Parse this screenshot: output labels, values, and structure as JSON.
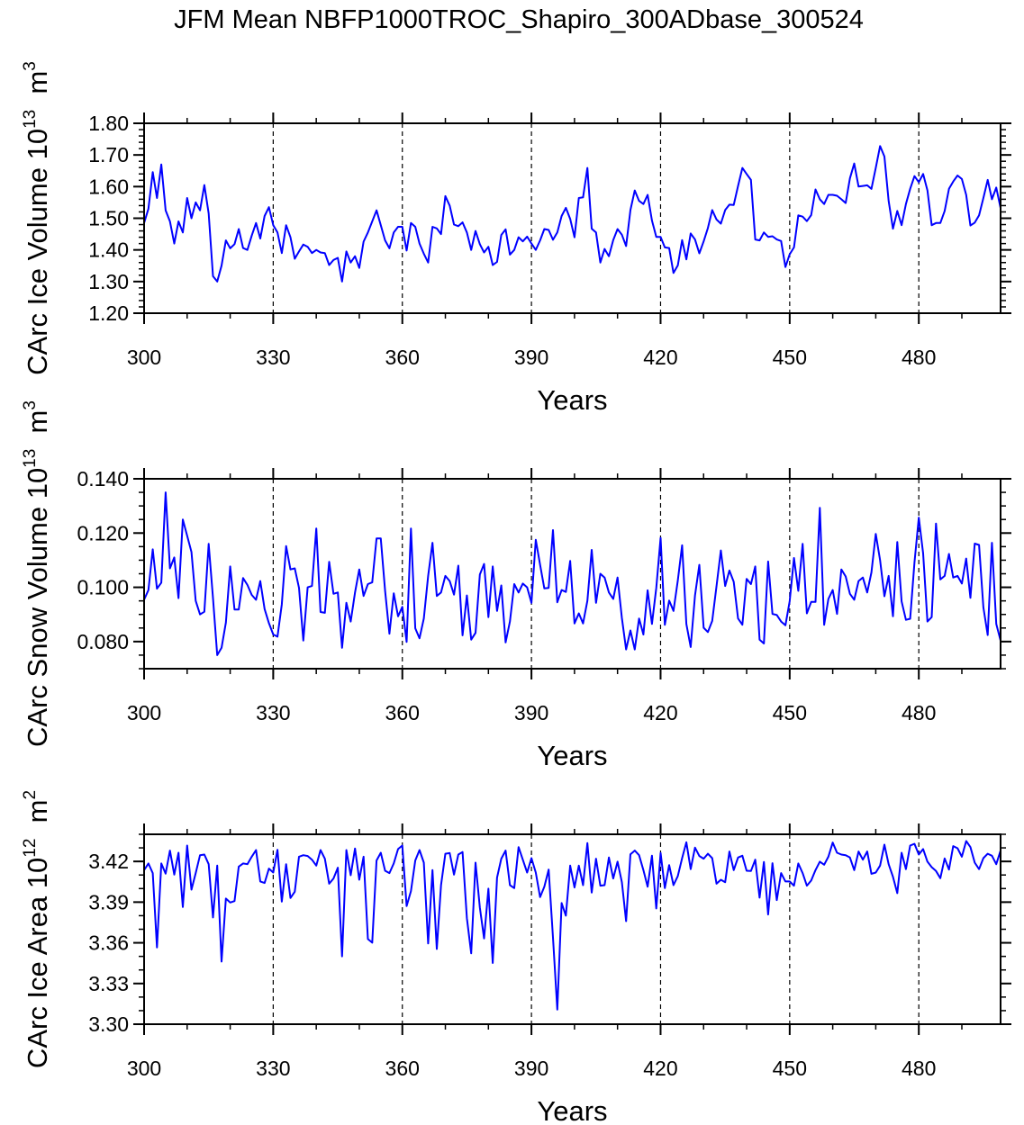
{
  "title": "JFM Mean NBFP1000TROC_Shapiro_300ADbase_300524",
  "chart_data": [
    {
      "type": "line",
      "xlabel": "Years",
      "ylabel": {
        "text": "CArc Ice Volume 10",
        "exp": "13",
        "unit": " m",
        "unit_exp": "3"
      },
      "xlim": [
        300,
        499
      ],
      "ylim": [
        1.2,
        1.8
      ],
      "x_ticks": [
        300,
        330,
        360,
        390,
        420,
        450,
        480
      ],
      "x_tick_labels": [
        "300",
        "330",
        "360",
        "390",
        "420",
        "450",
        "480"
      ],
      "x_minor_step": 10,
      "y_ticks": [
        1.2,
        1.3,
        1.4,
        1.5,
        1.6,
        1.7,
        1.8
      ],
      "y_tick_labels": [
        "1.20",
        "1.30",
        "1.40",
        "1.50",
        "1.60",
        "1.70",
        "1.80"
      ],
      "y_minor_step": 0.02,
      "vlines": [
        330,
        360,
        390,
        420,
        450,
        480
      ],
      "series_color": "#0000ff",
      "x_start": 300,
      "x_step": 1,
      "values": [
        1.485,
        1.53,
        1.646,
        1.564,
        1.67,
        1.525,
        1.49,
        1.42,
        1.49,
        1.455,
        1.564,
        1.5,
        1.55,
        1.525,
        1.605,
        1.515,
        1.317,
        1.3,
        1.35,
        1.43,
        1.405,
        1.418,
        1.466,
        1.406,
        1.4,
        1.445,
        1.485,
        1.436,
        1.507,
        1.535,
        1.478,
        1.455,
        1.39,
        1.478,
        1.44,
        1.372,
        1.395,
        1.417,
        1.41,
        1.39,
        1.4,
        1.392,
        1.39,
        1.352,
        1.368,
        1.375,
        1.3,
        1.395,
        1.36,
        1.38,
        1.343,
        1.426,
        1.455,
        1.49,
        1.525,
        1.478,
        1.43,
        1.405,
        1.455,
        1.473,
        1.473,
        1.398,
        1.485,
        1.473,
        1.42,
        1.388,
        1.36,
        1.473,
        1.468,
        1.45,
        1.57,
        1.54,
        1.48,
        1.475,
        1.487,
        1.455,
        1.4,
        1.46,
        1.418,
        1.392,
        1.41,
        1.352,
        1.362,
        1.447,
        1.465,
        1.385,
        1.4,
        1.44,
        1.427,
        1.442,
        1.42,
        1.4,
        1.43,
        1.466,
        1.463,
        1.432,
        1.455,
        1.507,
        1.533,
        1.498,
        1.44,
        1.564,
        1.566,
        1.659,
        1.467,
        1.455,
        1.36,
        1.403,
        1.38,
        1.431,
        1.466,
        1.448,
        1.412,
        1.526,
        1.588,
        1.555,
        1.545,
        1.574,
        1.493,
        1.441,
        1.441,
        1.408,
        1.406,
        1.327,
        1.351,
        1.431,
        1.37,
        1.452,
        1.433,
        1.389,
        1.427,
        1.469,
        1.526,
        1.496,
        1.483,
        1.526,
        1.543,
        1.542,
        1.602,
        1.659,
        1.64,
        1.621,
        1.433,
        1.43,
        1.455,
        1.441,
        1.443,
        1.433,
        1.428,
        1.346,
        1.386,
        1.408,
        1.509,
        1.505,
        1.491,
        1.51,
        1.591,
        1.56,
        1.545,
        1.574,
        1.574,
        1.571,
        1.56,
        1.548,
        1.626,
        1.673,
        1.6,
        1.602,
        1.604,
        1.593,
        1.659,
        1.728,
        1.695,
        1.555,
        1.467,
        1.523,
        1.478,
        1.545,
        1.593,
        1.633,
        1.614,
        1.64,
        1.588,
        1.478,
        1.485,
        1.485,
        1.523,
        1.593,
        1.616,
        1.635,
        1.624,
        1.574,
        1.477,
        1.486,
        1.509,
        1.564,
        1.621,
        1.56,
        1.597,
        1.532
      ]
    },
    {
      "type": "line",
      "xlabel": "Years",
      "ylabel": {
        "text": "CArc Snow Volume 10",
        "exp": "13",
        "unit": " m",
        "unit_exp": "3"
      },
      "xlim": [
        300,
        499
      ],
      "ylim": [
        0.07,
        0.14
      ],
      "x_ticks": [
        300,
        330,
        360,
        390,
        420,
        450,
        480
      ],
      "x_tick_labels": [
        "300",
        "330",
        "360",
        "390",
        "420",
        "450",
        "480"
      ],
      "x_minor_step": 10,
      "y_ticks": [
        0.08,
        0.1,
        0.12,
        0.14
      ],
      "y_tick_labels": [
        "0.080",
        "0.100",
        "0.120",
        "0.140"
      ],
      "y_minor_step": 0.005,
      "vlines": [
        330,
        360,
        390,
        420,
        450,
        480
      ],
      "series_color": "#0000ff",
      "x_start": 300,
      "x_step": 1,
      "values": [
        0.0954,
        0.099,
        0.114,
        0.0995,
        0.1017,
        0.135,
        0.107,
        0.111,
        0.096,
        0.125,
        0.119,
        0.113,
        0.095,
        0.09,
        0.091,
        0.116,
        0.096,
        0.075,
        0.0777,
        0.087,
        0.1077,
        0.0918,
        0.0918,
        0.1034,
        0.1009,
        0.0972,
        0.0954,
        0.1023,
        0.092,
        0.0868,
        0.0826,
        0.0818,
        0.0937,
        0.1152,
        0.1066,
        0.107,
        0.0998,
        0.0804,
        0.1,
        0.1005,
        0.1217,
        0.0909,
        0.0906,
        0.1094,
        0.0976,
        0.0981,
        0.0777,
        0.0943,
        0.0874,
        0.0981,
        0.1066,
        0.0968,
        0.1012,
        0.1018,
        0.118,
        0.118,
        0.0987,
        0.0829,
        0.0978,
        0.0893,
        0.0928,
        0.0799,
        0.1217,
        0.0849,
        0.0812,
        0.0885,
        0.1042,
        0.1164,
        0.0968,
        0.0981,
        0.1042,
        0.1023,
        0.0973,
        0.108,
        0.0823,
        0.097,
        0.0807,
        0.0832,
        0.1047,
        0.1086,
        0.089,
        0.1077,
        0.0913,
        0.1007,
        0.0797,
        0.0874,
        0.1012,
        0.0981,
        0.1014,
        0.1,
        0.0943,
        0.1175,
        0.1083,
        0.0996,
        0.0998,
        0.1211,
        0.0945,
        0.099,
        0.0983,
        0.1097,
        0.0867,
        0.0904,
        0.0867,
        0.095,
        0.1138,
        0.0943,
        0.105,
        0.1036,
        0.0981,
        0.0957,
        0.1036,
        0.0887,
        0.0771,
        0.0841,
        0.0771,
        0.0885,
        0.0826,
        0.0989,
        0.0865,
        0.0998,
        0.1182,
        0.0862,
        0.0951,
        0.0913,
        0.1025,
        0.1155,
        0.0865,
        0.078,
        0.097,
        0.1083,
        0.0851,
        0.0835,
        0.0876,
        0.1005,
        0.1136,
        0.1005,
        0.1062,
        0.102,
        0.0885,
        0.0862,
        0.1031,
        0.1012,
        0.1077,
        0.0807,
        0.0793,
        0.1095,
        0.0902,
        0.0898,
        0.0874,
        0.086,
        0.0948,
        0.1108,
        0.0987,
        0.116,
        0.0904,
        0.0946,
        0.0946,
        0.1293,
        0.0862,
        0.0957,
        0.099,
        0.0902,
        0.1066,
        0.104,
        0.0976,
        0.0954,
        0.1023,
        0.1036,
        0.0981,
        0.1055,
        0.1197,
        0.11,
        0.0967,
        0.1042,
        0.0893,
        0.1167,
        0.0948,
        0.088,
        0.0884,
        0.1092,
        0.1257,
        0.1125,
        0.0874,
        0.089,
        0.1235,
        0.1029,
        0.1042,
        0.1123,
        0.1036,
        0.1042,
        0.1014,
        0.1106,
        0.0961,
        0.1161,
        0.1156,
        0.0926,
        0.0824,
        0.1164,
        0.0865,
        0.0804
      ]
    },
    {
      "type": "line",
      "xlabel": "Years",
      "ylabel": {
        "text": "CArc Ice Area 10",
        "exp": "12",
        "unit": " m",
        "unit_exp": "2"
      },
      "xlim": [
        300,
        499
      ],
      "ylim": [
        3.3,
        3.44
      ],
      "x_ticks": [
        300,
        330,
        360,
        390,
        420,
        450,
        480
      ],
      "x_tick_labels": [
        "300",
        "330",
        "360",
        "390",
        "420",
        "450",
        "480"
      ],
      "x_minor_step": 10,
      "y_ticks": [
        3.3,
        3.33,
        3.36,
        3.39,
        3.42
      ],
      "y_tick_labels": [
        "3.30",
        "3.33",
        "3.36",
        "3.39",
        "3.42"
      ],
      "y_minor_step": 0.01,
      "vlines": [
        330,
        360,
        390,
        420,
        450,
        480
      ],
      "series_color": "#0000ff",
      "x_start": 300,
      "x_step": 1,
      "values": [
        3.4136,
        3.4185,
        3.4114,
        3.3566,
        3.4185,
        3.411,
        3.428,
        3.4103,
        3.4264,
        3.3864,
        3.4317,
        3.3992,
        3.4114,
        3.4246,
        3.4251,
        3.418,
        3.3787,
        3.4169,
        3.3462,
        3.3926,
        3.3897,
        3.3908,
        3.4162,
        3.4185,
        3.418,
        3.4235,
        3.4284,
        3.4052,
        3.4041,
        3.4147,
        3.4118,
        3.4286,
        3.3904,
        3.418,
        3.393,
        3.3977,
        3.4235,
        3.4246,
        3.424,
        3.4213,
        3.4169,
        3.4284,
        3.422,
        3.4036,
        3.4074,
        3.4154,
        3.35,
        3.4284,
        3.4098,
        3.4295,
        3.4065,
        3.4235,
        3.3628,
        3.3601,
        3.4207,
        3.4264,
        3.4131,
        3.4114,
        3.4185,
        3.4291,
        3.4317,
        3.3871,
        3.3981,
        3.4207,
        3.4284,
        3.4191,
        3.3595,
        3.4136,
        3.3555,
        3.4025,
        3.4257,
        3.4262,
        3.4103,
        3.4251,
        3.4269,
        3.3782,
        3.3522,
        3.4191,
        3.386,
        3.3632,
        3.3999,
        3.3451,
        3.4081,
        3.422,
        3.428,
        3.4025,
        3.4003,
        3.4306,
        3.4213,
        3.4118,
        3.4224,
        3.4118,
        3.3937,
        3.4014,
        3.414,
        3.3639,
        3.3108,
        3.3893,
        3.38,
        3.4169,
        3.4008,
        3.4169,
        3.4025,
        3.4335,
        3.397,
        3.422,
        3.4021,
        3.4025,
        3.4229,
        3.4074,
        3.4198,
        3.4047,
        3.376,
        3.4253,
        3.428,
        3.4246,
        3.4136,
        3.4014,
        3.4242,
        3.3853,
        3.4262,
        3.4003,
        3.4173,
        3.4025,
        3.4092,
        3.4224,
        3.4341,
        3.4143,
        3.4302,
        3.424,
        3.422,
        3.4257,
        3.4224,
        3.4036,
        3.4065,
        3.4047,
        3.4273,
        3.4136,
        3.4229,
        3.4242,
        3.4131,
        3.4129,
        3.4213,
        3.3933,
        3.4196,
        3.3809,
        3.4187,
        3.3915,
        3.4114,
        3.4052,
        3.4052,
        3.4021,
        3.4185,
        3.4114,
        3.4021,
        3.4059,
        3.4136,
        3.4198,
        3.4176,
        3.4235,
        3.4339,
        3.4264,
        3.4251,
        3.4246,
        3.4229,
        3.4136,
        3.4273,
        3.4213,
        3.4273,
        3.4109,
        3.4118,
        3.4169,
        3.4324,
        3.418,
        3.4087,
        3.3966,
        3.4264,
        3.4143,
        3.4317,
        3.433,
        3.4251,
        3.4291,
        3.4198,
        3.4158,
        3.4129,
        3.4076,
        3.4222,
        3.414,
        3.4313,
        3.4297,
        3.4235,
        3.435,
        3.4306,
        3.4191,
        3.4143,
        3.4224,
        3.4257,
        3.4242,
        3.418,
        3.428
      ]
    }
  ]
}
